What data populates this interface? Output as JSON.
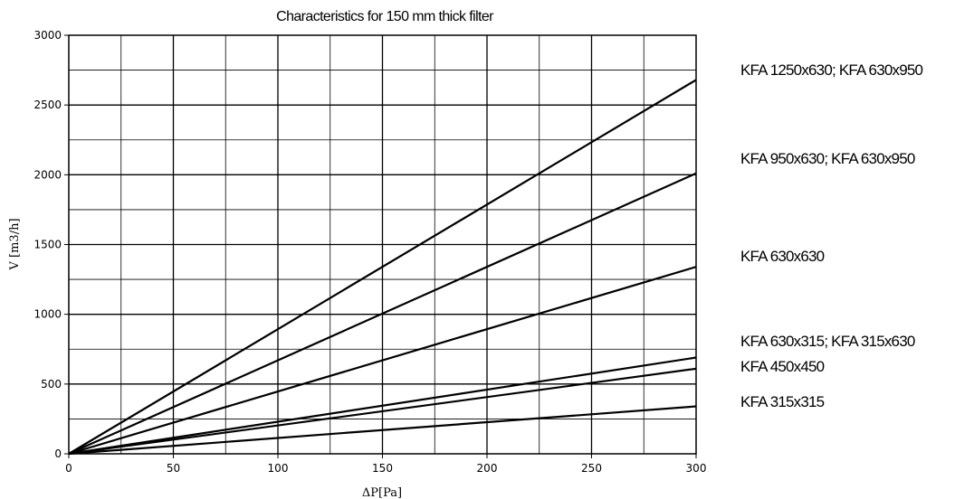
{
  "chart_data": {
    "type": "line",
    "title": "Characteristics for 150 mm thick filter",
    "xlabel": "ΔP[Pa]",
    "ylabel": "V [m3/h]",
    "xlim": [
      0,
      300
    ],
    "ylim": [
      0,
      3000
    ],
    "xticks": [
      0,
      50,
      100,
      150,
      200,
      250,
      300
    ],
    "yticks": [
      0,
      500,
      1000,
      1500,
      2000,
      2500,
      3000
    ],
    "xtick_labels": [
      "0",
      "50",
      "100",
      "150",
      "200",
      "250",
      "300"
    ],
    "ytick_labels": [
      "0",
      "500",
      "1000",
      "1500",
      "2000",
      "2500",
      "3000"
    ],
    "grid": true,
    "legend": "right",
    "series": [
      {
        "name": "KFA 1250x630; KFA 630x950",
        "x": [
          0,
          300
        ],
        "y": [
          0,
          2680
        ]
      },
      {
        "name": "KFA 950x630; KFA 630x950",
        "x": [
          0,
          300
        ],
        "y": [
          0,
          2010
        ]
      },
      {
        "name": "KFA 630x630",
        "x": [
          0,
          300
        ],
        "y": [
          0,
          1340
        ]
      },
      {
        "name": "KFA 630x315; KFA 315x630",
        "x": [
          0,
          300
        ],
        "y": [
          0,
          690
        ]
      },
      {
        "name": "KFA 450x450",
        "x": [
          0,
          300
        ],
        "y": [
          0,
          610
        ]
      },
      {
        "name": "KFA 315x315",
        "x": [
          0,
          300
        ],
        "y": [
          0,
          340
        ]
      }
    ]
  }
}
